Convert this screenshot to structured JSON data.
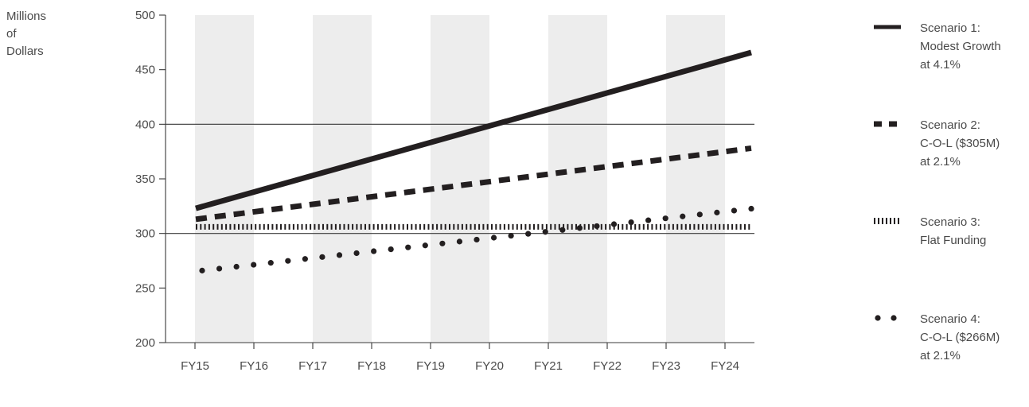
{
  "chart_data": {
    "type": "line",
    "ylabel_lines": [
      "Millions",
      "of",
      "Dollars"
    ],
    "categories": [
      "FY15",
      "FY16",
      "FY17",
      "FY18",
      "FY19",
      "FY20",
      "FY21",
      "FY22",
      "FY23",
      "FY24"
    ],
    "ylim": [
      200,
      500
    ],
    "yticks": [
      200,
      250,
      300,
      350,
      400,
      450,
      500
    ],
    "reference_lines": [
      300,
      400
    ],
    "shaded_bands": [
      [
        "FY15",
        "FY16"
      ],
      [
        "FY17",
        "FY18"
      ],
      [
        "FY19",
        "FY20"
      ],
      [
        "FY21",
        "FY22"
      ],
      [
        "FY23",
        "FY24"
      ]
    ],
    "series": [
      {
        "name_lines": [
          "Scenario 1:",
          "Modest Growth",
          "at 4.1%"
        ],
        "style": "solid",
        "x": [
          "FY15",
          "FY24"
        ],
        "values": [
          323,
          459
        ]
      },
      {
        "name_lines": [
          "Scenario 2:",
          "C-O-L ($305M)",
          "at 2.1%"
        ],
        "style": "dashed",
        "x": [
          "FY15",
          "FY24"
        ],
        "values": [
          313,
          375
        ]
      },
      {
        "name_lines": [
          "Scenario 3:",
          "Flat Funding"
        ],
        "style": "hatched",
        "x": [
          "FY15",
          "FY24"
        ],
        "values": [
          306,
          306
        ]
      },
      {
        "name_lines": [
          "Scenario 4:",
          "C-O-L ($266M)",
          "at 2.1%"
        ],
        "style": "dotted",
        "x": [
          "FY15",
          "FY24"
        ],
        "values": [
          266,
          320
        ]
      }
    ],
    "grid": false,
    "legend": "right"
  },
  "colors": {
    "line": "#231f20",
    "band": "#ededed",
    "axis": "#3a3a3a",
    "text": "#4a4a4a"
  }
}
